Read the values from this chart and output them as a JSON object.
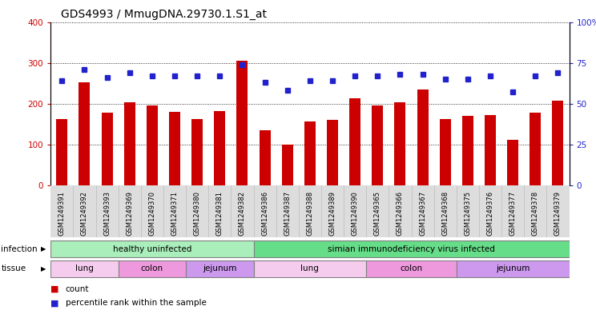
{
  "title": "GDS4993 / MmugDNA.29730.1.S1_at",
  "samples": [
    "GSM1249391",
    "GSM1249392",
    "GSM1249393",
    "GSM1249369",
    "GSM1249370",
    "GSM1249371",
    "GSM1249380",
    "GSM1249381",
    "GSM1249382",
    "GSM1249386",
    "GSM1249387",
    "GSM1249388",
    "GSM1249389",
    "GSM1249390",
    "GSM1249365",
    "GSM1249366",
    "GSM1249367",
    "GSM1249368",
    "GSM1249375",
    "GSM1249376",
    "GSM1249377",
    "GSM1249378",
    "GSM1249379"
  ],
  "counts": [
    163,
    253,
    178,
    203,
    196,
    180,
    162,
    182,
    305,
    135,
    100,
    157,
    160,
    214,
    196,
    203,
    234,
    162,
    170,
    172,
    112,
    178,
    208
  ],
  "percentiles": [
    64,
    71,
    66,
    69,
    67,
    67,
    67,
    67,
    74,
    63,
    58,
    64,
    64,
    67,
    67,
    68,
    68,
    65,
    65,
    67,
    57,
    67,
    69
  ],
  "bar_color": "#CC0000",
  "dot_color": "#2222CC",
  "ylim_left": [
    0,
    400
  ],
  "ylim_right": [
    0,
    100
  ],
  "yticks_left": [
    0,
    100,
    200,
    300,
    400
  ],
  "yticks_right": [
    0,
    25,
    50,
    75,
    100
  ],
  "infection_groups": [
    {
      "label": "healthy uninfected",
      "start": 0,
      "end": 9,
      "color": "#AAEEBB"
    },
    {
      "label": "simian immunodeficiency virus infected",
      "start": 9,
      "end": 23,
      "color": "#66DD88"
    }
  ],
  "tissue_groups": [
    {
      "label": "lung",
      "start": 0,
      "end": 3,
      "color": "#F5CCEE"
    },
    {
      "label": "colon",
      "start": 3,
      "end": 6,
      "color": "#EE99DD"
    },
    {
      "label": "jejunum",
      "start": 6,
      "end": 9,
      "color": "#CC99EE"
    },
    {
      "label": "lung",
      "start": 9,
      "end": 14,
      "color": "#F5CCEE"
    },
    {
      "label": "colon",
      "start": 14,
      "end": 18,
      "color": "#EE99DD"
    },
    {
      "label": "jejunum",
      "start": 18,
      "end": 23,
      "color": "#CC99EE"
    }
  ],
  "infection_label": "infection",
  "tissue_label": "tissue",
  "legend_count": "count",
  "legend_percentile": "percentile rank within the sample",
  "plot_bg": "#FFFFFF",
  "fig_bg": "#FFFFFF",
  "xtick_bg": "#DDDDDD"
}
